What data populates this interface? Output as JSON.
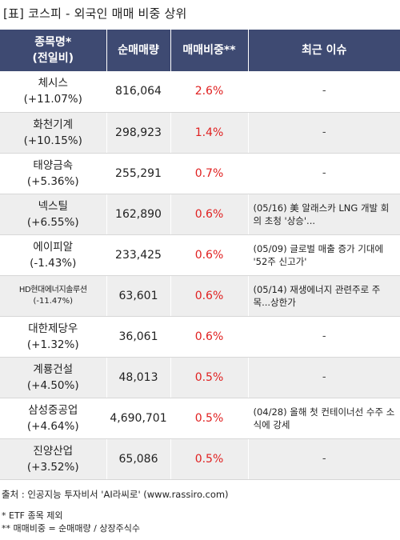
{
  "title": "[표] 코스피 - 외국인 매매 비중 상위",
  "headers": {
    "name": "종목명*",
    "name_sub": "(전일비)",
    "volume": "순매매량",
    "ratio": "매매비중**",
    "issue": "최근 이슈"
  },
  "rows": [
    {
      "name": "체시스",
      "change": "(+11.07%)",
      "volume": "816,064",
      "ratio": "2.6%",
      "issue": "-"
    },
    {
      "name": "화천기계",
      "change": "(+10.15%)",
      "volume": "298,923",
      "ratio": "1.4%",
      "issue": "-"
    },
    {
      "name": "태양금속",
      "change": "(+5.36%)",
      "volume": "255,291",
      "ratio": "0.7%",
      "issue": "-"
    },
    {
      "name": "넥스틸",
      "change": "(+6.55%)",
      "volume": "162,890",
      "ratio": "0.6%",
      "issue": "(05/16) 美 알래스카 LNG 개발 회의 초청 '상승'..."
    },
    {
      "name": "에이피알",
      "change": "(-1.43%)",
      "volume": "233,425",
      "ratio": "0.6%",
      "issue": "(05/09) 글로벌 매출 증가 기대에 '52주 신고가'"
    },
    {
      "name": "HD현대에너지솔루션",
      "change": "(-11.47%)",
      "volume": "63,601",
      "ratio": "0.6%",
      "issue": "(05/14) 재생에너지 관련주로 주목...상한가"
    },
    {
      "name": "대한제당우",
      "change": "(+1.32%)",
      "volume": "36,061",
      "ratio": "0.6%",
      "issue": "-"
    },
    {
      "name": "계룡건설",
      "change": "(+4.50%)",
      "volume": "48,013",
      "ratio": "0.5%",
      "issue": "-"
    },
    {
      "name": "삼성중공업",
      "change": "(+4.64%)",
      "volume": "4,690,701",
      "ratio": "0.5%",
      "issue": "(04/28) 올해 첫 컨테이너선 수주 소식에 강세"
    },
    {
      "name": "진양산업",
      "change": "(+3.52%)",
      "volume": "65,086",
      "ratio": "0.5%",
      "issue": "-"
    }
  ],
  "source": "출처 : 인공지능 투자비서 'AI라씨로' (www.rassiro.com)",
  "notes": [
    "* ETF 종목 제외",
    "** 매매비중 = 순매매량 / 상장주식수"
  ],
  "colors": {
    "header_bg": "#3e4a72",
    "ratio_text": "#e02020",
    "alt_row": "#eeeeee"
  }
}
